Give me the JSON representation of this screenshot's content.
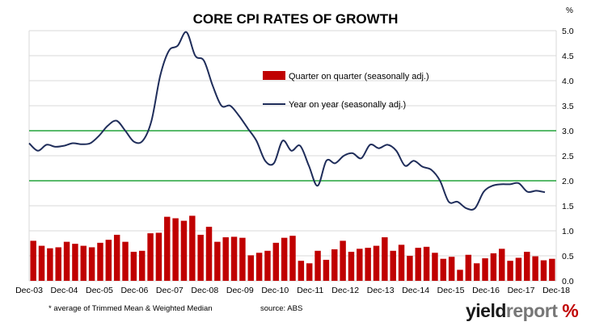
{
  "chart_data": {
    "type": "bar+line",
    "title": "CORE CPI RATES OF GROWTH",
    "ylabel": "%",
    "ylim": [
      0,
      5
    ],
    "yticks": [
      "0.0",
      "0.5",
      "1.0",
      "1.5",
      "2.0",
      "2.5",
      "3.0",
      "3.5",
      "4.0",
      "4.5",
      "5.0"
    ],
    "xticks": [
      "Dec-03",
      "Dec-04",
      "Dec-05",
      "Dec-06",
      "Dec-07",
      "Dec-08",
      "Dec-09",
      "Dec-10",
      "Dec-11",
      "Dec-12",
      "Dec-13",
      "Dec-14",
      "Dec-15",
      "Dec-16",
      "Dec-17",
      "Dec-18"
    ],
    "reference_lines": [
      2.0,
      3.0
    ],
    "legend_position": "upper-center",
    "series": [
      {
        "name": "Quarter on quarter (seasonally adj.)",
        "type": "bar",
        "color": "#c00000",
        "values": [
          0.8,
          0.7,
          0.65,
          0.67,
          0.78,
          0.74,
          0.7,
          0.67,
          0.76,
          0.82,
          0.92,
          0.78,
          0.58,
          0.6,
          0.95,
          0.96,
          1.28,
          1.25,
          1.2,
          1.3,
          0.92,
          1.08,
          0.78,
          0.87,
          0.88,
          0.86,
          0.51,
          0.56,
          0.6,
          0.76,
          0.86,
          0.9,
          0.4,
          0.35,
          0.6,
          0.42,
          0.63,
          0.8,
          0.58,
          0.64,
          0.66,
          0.7,
          0.87,
          0.6,
          0.72,
          0.5,
          0.66,
          0.68,
          0.56,
          0.44,
          0.48,
          0.22,
          0.52,
          0.35,
          0.45,
          0.55,
          0.64,
          0.4,
          0.46,
          0.58,
          0.49,
          0.41,
          0.44
        ]
      },
      {
        "name": "Year on year (seasonally adj.)",
        "type": "line",
        "color": "#1f2d5a",
        "values": [
          2.75,
          2.6,
          2.72,
          2.68,
          2.7,
          2.75,
          2.73,
          2.75,
          2.9,
          3.1,
          3.2,
          3.0,
          2.78,
          2.8,
          3.2,
          4.1,
          4.6,
          4.7,
          4.97,
          4.5,
          4.4,
          3.9,
          3.5,
          3.5,
          3.3,
          3.05,
          2.8,
          2.4,
          2.35,
          2.8,
          2.6,
          2.7,
          2.3,
          1.9,
          2.4,
          2.35,
          2.5,
          2.55,
          2.45,
          2.72,
          2.65,
          2.72,
          2.6,
          2.3,
          2.4,
          2.28,
          2.22,
          2.0,
          1.58,
          1.58,
          1.45,
          1.45,
          1.78,
          1.9,
          1.93,
          1.93,
          1.95,
          1.78,
          1.8,
          1.77
        ]
      }
    ]
  },
  "footnote": "* average of Trimmed Mean & Weighted Median",
  "source": "source: ABS",
  "brand": {
    "part1": "yield",
    "part2": "report",
    "mark": "%"
  },
  "colors": {
    "grid": "#d9d9d9",
    "reference": "#22a33a",
    "axis": "#888888"
  }
}
